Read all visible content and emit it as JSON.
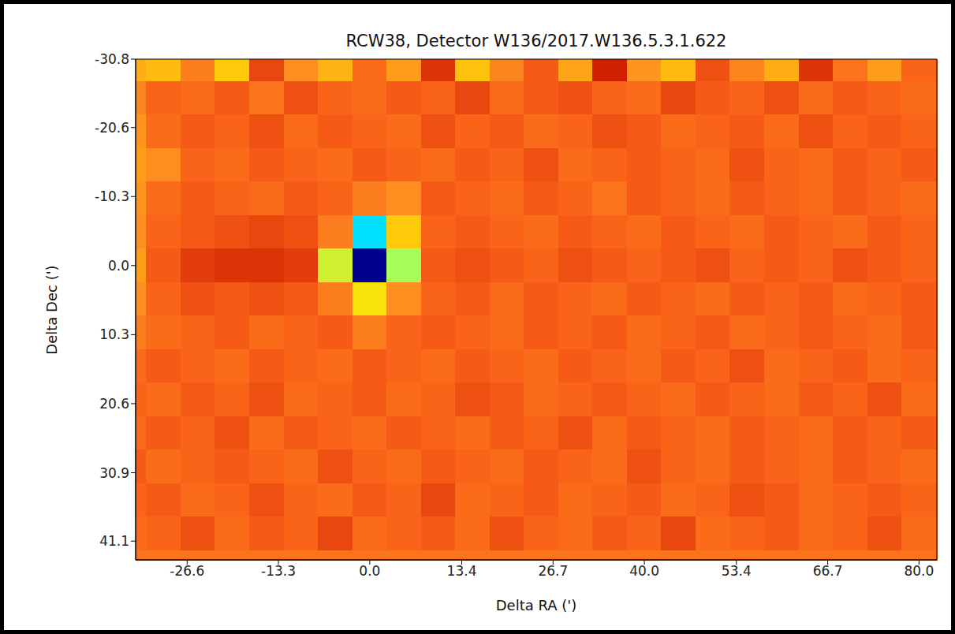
{
  "chart_data": {
    "type": "heatmap",
    "title": "RCW38, Detector W136/2017.W136.5.3.1.622",
    "x_label": "Delta RA (')",
    "y_label": "Delta Dec (')",
    "xlim": [
      -34.1,
      82.6
    ],
    "ylim": [
      -30.8,
      43.9
    ],
    "xticks": [
      -26.6,
      -13.3,
      {
        "value": 0,
        "label": "0.0"
      },
      13.4,
      26.7,
      {
        "value": 40,
        "label": "40.0"
      },
      53.4,
      66.7,
      {
        "value": 80,
        "label": "80.0"
      }
    ],
    "yticks": [
      -30.8,
      -20.6,
      -10.3,
      {
        "value": 0,
        "label": "0.0"
      },
      10.3,
      20.6,
      30.9,
      41.1
    ],
    "cells": {
      "x_edges": [
        -34.1,
        -32.5,
        -27.5,
        -22.5,
        -17.5,
        -12.5,
        -7.5,
        -2.5,
        2.5,
        7.5,
        12.5,
        17.5,
        22.5,
        27.5,
        32.5,
        37.5,
        42.5,
        47.5,
        52.5,
        57.5,
        62.5,
        67.5,
        72.5,
        77.5,
        82.6
      ],
      "y_edges": [
        -30.8,
        -27.5,
        -22.5,
        -17.5,
        -12.5,
        -7.5,
        -2.5,
        2.5,
        7.5,
        12.5,
        17.5,
        22.5,
        27.5,
        32.5,
        37.5,
        42.5,
        43.9
      ],
      "values": [
        [
          0.74,
          0.72,
          0.8,
          0.7,
          0.86,
          0.78,
          0.73,
          0.82,
          0.76,
          0.88,
          0.71,
          0.79,
          0.84,
          0.75,
          0.9,
          0.77,
          0.72,
          0.85,
          0.79,
          0.74,
          0.88,
          0.81,
          0.76,
          0.83
        ],
        [
          0.79,
          0.83,
          0.82,
          0.84,
          0.81,
          0.85,
          0.83,
          0.82,
          0.84,
          0.83,
          0.86,
          0.82,
          0.84,
          0.85,
          0.83,
          0.82,
          0.86,
          0.84,
          0.83,
          0.85,
          0.82,
          0.84,
          0.83,
          0.82
        ],
        [
          0.77,
          0.82,
          0.84,
          0.83,
          0.85,
          0.82,
          0.84,
          0.83,
          0.82,
          0.85,
          0.83,
          0.84,
          0.82,
          0.83,
          0.85,
          0.84,
          0.82,
          0.83,
          0.84,
          0.82,
          0.85,
          0.83,
          0.84,
          0.83
        ],
        [
          0.76,
          0.78,
          0.83,
          0.82,
          0.84,
          0.83,
          0.82,
          0.84,
          0.83,
          0.82,
          0.84,
          0.83,
          0.85,
          0.82,
          0.83,
          0.84,
          0.83,
          0.82,
          0.85,
          0.83,
          0.82,
          0.84,
          0.83,
          0.84
        ],
        [
          0.77,
          0.82,
          0.84,
          0.83,
          0.82,
          0.84,
          0.83,
          0.8,
          0.78,
          0.84,
          0.83,
          0.82,
          0.84,
          0.83,
          0.81,
          0.84,
          0.83,
          0.82,
          0.84,
          0.83,
          0.82,
          0.84,
          0.83,
          0.82
        ],
        [
          0.78,
          0.83,
          0.84,
          0.85,
          0.86,
          0.85,
          0.8,
          0.45,
          0.7,
          0.83,
          0.84,
          0.83,
          0.82,
          0.84,
          0.83,
          0.82,
          0.84,
          0.83,
          0.82,
          0.84,
          0.83,
          0.82,
          0.84,
          0.83
        ],
        [
          0.76,
          0.84,
          0.87,
          0.88,
          0.88,
          0.87,
          0.62,
          0.08,
          0.58,
          0.84,
          0.85,
          0.84,
          0.83,
          0.85,
          0.84,
          0.83,
          0.84,
          0.85,
          0.83,
          0.84,
          0.83,
          0.85,
          0.84,
          0.83
        ],
        [
          0.78,
          0.83,
          0.85,
          0.84,
          0.85,
          0.84,
          0.8,
          0.66,
          0.78,
          0.83,
          0.84,
          0.82,
          0.84,
          0.83,
          0.82,
          0.84,
          0.83,
          0.82,
          0.84,
          0.83,
          0.84,
          0.82,
          0.83,
          0.84
        ],
        [
          0.8,
          0.82,
          0.83,
          0.84,
          0.82,
          0.83,
          0.84,
          0.8,
          0.83,
          0.84,
          0.83,
          0.82,
          0.84,
          0.83,
          0.84,
          0.82,
          0.83,
          0.84,
          0.82,
          0.83,
          0.84,
          0.83,
          0.82,
          0.84
        ],
        [
          0.82,
          0.84,
          0.83,
          0.82,
          0.84,
          0.83,
          0.82,
          0.84,
          0.83,
          0.82,
          0.84,
          0.83,
          0.82,
          0.84,
          0.83,
          0.82,
          0.84,
          0.83,
          0.85,
          0.82,
          0.83,
          0.84,
          0.82,
          0.83
        ],
        [
          0.83,
          0.82,
          0.84,
          0.83,
          0.85,
          0.82,
          0.83,
          0.84,
          0.82,
          0.83,
          0.85,
          0.84,
          0.82,
          0.83,
          0.84,
          0.83,
          0.82,
          0.84,
          0.83,
          0.82,
          0.84,
          0.83,
          0.85,
          0.82
        ],
        [
          0.82,
          0.84,
          0.83,
          0.85,
          0.82,
          0.84,
          0.83,
          0.82,
          0.84,
          0.83,
          0.82,
          0.84,
          0.83,
          0.85,
          0.82,
          0.84,
          0.83,
          0.82,
          0.84,
          0.83,
          0.82,
          0.84,
          0.83,
          0.84
        ],
        [
          0.84,
          0.82,
          0.83,
          0.84,
          0.83,
          0.82,
          0.85,
          0.83,
          0.82,
          0.84,
          0.83,
          0.82,
          0.84,
          0.83,
          0.82,
          0.85,
          0.83,
          0.82,
          0.84,
          0.83,
          0.82,
          0.84,
          0.83,
          0.82
        ],
        [
          0.83,
          0.84,
          0.82,
          0.83,
          0.85,
          0.83,
          0.82,
          0.84,
          0.83,
          0.86,
          0.82,
          0.83,
          0.84,
          0.82,
          0.83,
          0.84,
          0.82,
          0.83,
          0.85,
          0.84,
          0.82,
          0.83,
          0.84,
          0.83
        ],
        [
          0.82,
          0.83,
          0.85,
          0.82,
          0.84,
          0.83,
          0.86,
          0.82,
          0.83,
          0.84,
          0.82,
          0.85,
          0.83,
          0.82,
          0.84,
          0.83,
          0.86,
          0.82,
          0.83,
          0.84,
          0.82,
          0.83,
          0.85,
          0.82
        ],
        [
          0.81,
          0.81,
          0.81,
          0.81,
          0.81,
          0.81,
          0.81,
          0.81,
          0.81,
          0.81,
          0.81,
          0.81,
          0.81,
          0.81,
          0.81,
          0.81,
          0.81,
          0.81,
          0.81,
          0.81,
          0.81,
          0.81,
          0.81,
          0.81
        ]
      ]
    }
  }
}
